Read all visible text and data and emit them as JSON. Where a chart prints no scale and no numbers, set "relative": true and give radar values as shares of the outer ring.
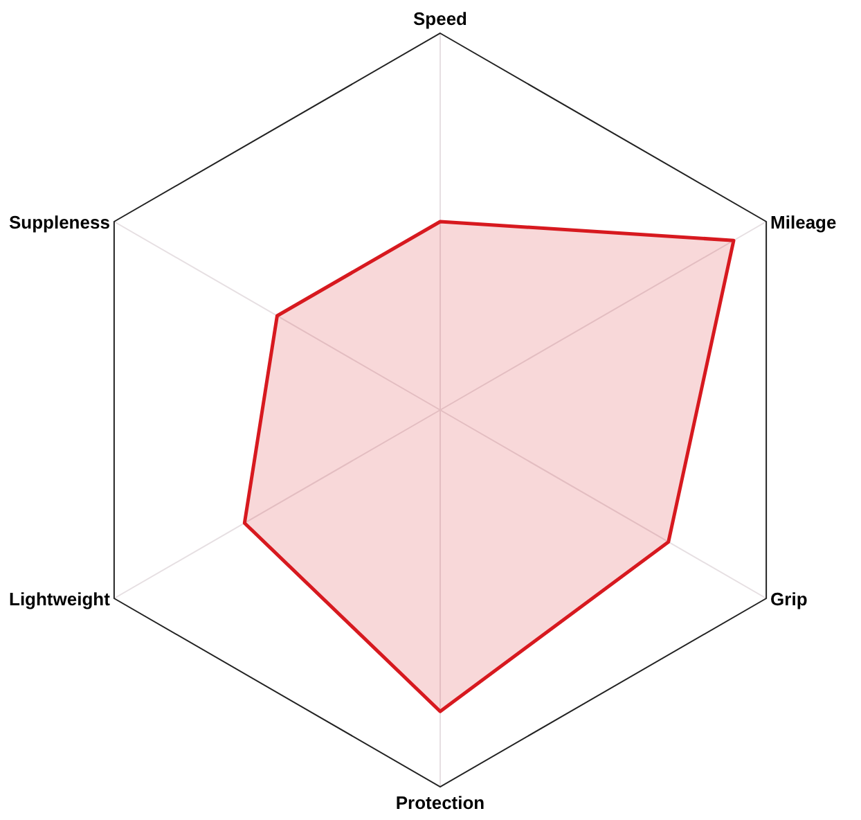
{
  "chart_data": {
    "type": "radar",
    "relative": true,
    "categories": [
      "Speed",
      "Mileage",
      "Grip",
      "Protection",
      "Lightweight",
      "Suppleness"
    ],
    "series": [
      {
        "color": "#d7191f",
        "values": [
          0.5,
          0.9,
          0.7,
          0.8,
          0.6,
          0.5
        ]
      }
    ]
  }
}
